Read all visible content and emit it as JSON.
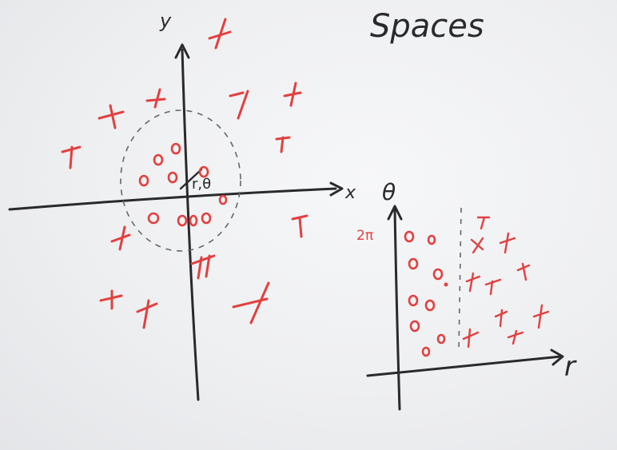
{
  "title": "Spaces",
  "left_plot": {
    "x_label": "x",
    "y_label": "y",
    "radius_label": "r,θ"
  },
  "right_plot": {
    "x_label": "r",
    "y_label": "θ",
    "tick_label": "2π"
  },
  "colors": {
    "ink": "#2a2a2c",
    "marker": "#e2403f",
    "board": "#eeeff1"
  }
}
